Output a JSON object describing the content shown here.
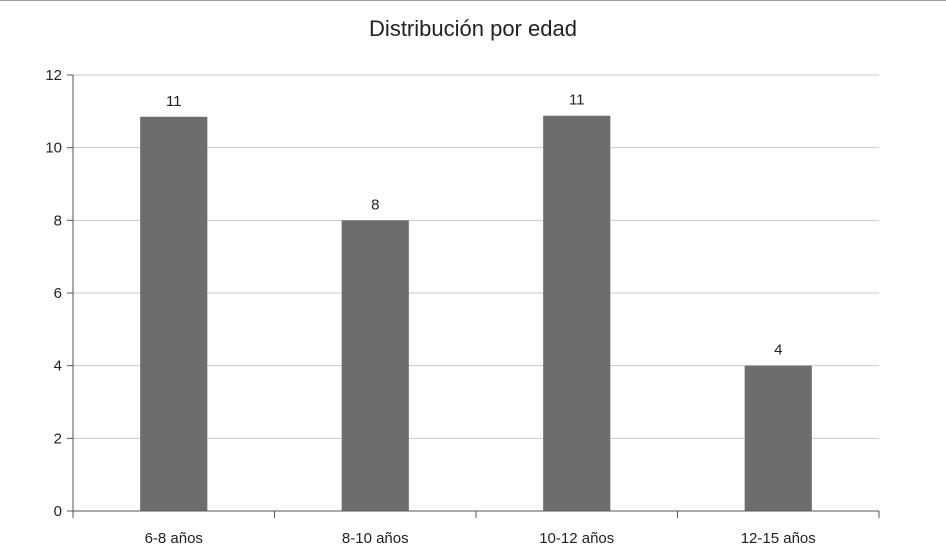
{
  "chart_data": {
    "type": "bar",
    "title": "Distribución por edad",
    "xlabel": "",
    "ylabel": "",
    "categories": [
      "6-8 años",
      "8-10 años",
      "10-12 años",
      "12-15 años"
    ],
    "values": [
      10.85,
      8.0,
      10.88,
      4.0
    ],
    "data_labels": [
      "11",
      "8",
      "11",
      "4"
    ],
    "ylim": [
      0,
      12
    ],
    "yticks": [
      0,
      2,
      4,
      6,
      8,
      10,
      12
    ],
    "grid": true,
    "legend": "none",
    "colors": {
      "bar": "#6d6d6d",
      "grid": "#c8c8c8",
      "axis": "#555555"
    }
  }
}
